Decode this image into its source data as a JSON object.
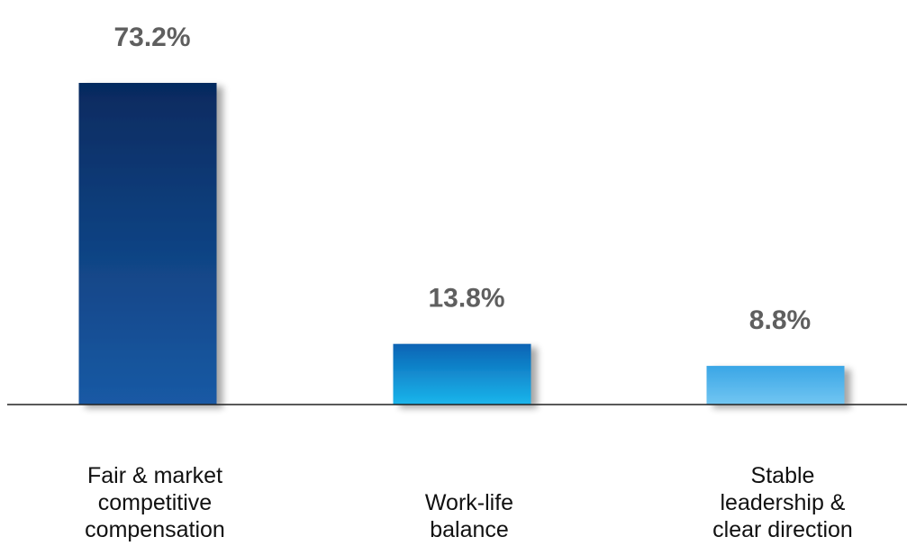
{
  "chart_data": {
    "type": "bar",
    "categories": [
      [
        "Fair & market",
        "competitive",
        "compensation"
      ],
      [
        "Work-life",
        "balance"
      ],
      [
        "Stable",
        "leadership &",
        "clear direction"
      ]
    ],
    "values": [
      73.2,
      13.8,
      8.8
    ],
    "value_labels": [
      "73.2%",
      "13.8%",
      "8.8%"
    ],
    "unit": "%",
    "title": "",
    "xlabel": "",
    "ylabel": "",
    "ylim": [
      0,
      73.2
    ],
    "grid": false,
    "legend": "none",
    "colors": {
      "bar1_top": "#062a5f",
      "bar1_bottom": "#1a5aa5",
      "bar2_top": "#0a63b4",
      "bar2_bottom": "#1bb6ec",
      "bar3_top": "#3aa6e6",
      "bar3_bottom": "#72c6f2",
      "value_text": "#5f5f5f",
      "category_text": "#111111",
      "baseline": "#222222"
    }
  }
}
